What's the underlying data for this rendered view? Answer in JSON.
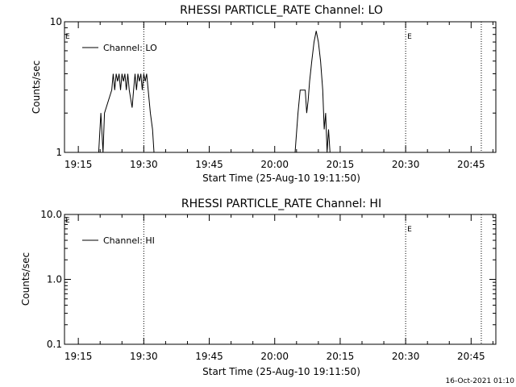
{
  "chart_data": [
    {
      "type": "line",
      "title": "RHESSI PARTICLE_RATE Channel: LO",
      "xlabel": "Start Time (25-Aug-10 19:11:50)",
      "ylabel": "Counts/sec",
      "yscale": "log",
      "ylim": [
        1,
        10
      ],
      "ytick_labels": [
        "1",
        "10"
      ],
      "xlim": [
        "19:11:50",
        "20:50:40"
      ],
      "xtick_labels": [
        "19:15",
        "19:30",
        "19:45",
        "20:00",
        "20:15",
        "20:30",
        "20:45"
      ],
      "legend": {
        "location": "top-left",
        "entries": [
          "Channel: LO"
        ]
      },
      "vertical_markers": [
        {
          "time": "19:30:00",
          "label": ""
        },
        {
          "time": "20:30:00",
          "label": "E"
        },
        {
          "time": "20:47:20",
          "label": ""
        }
      ],
      "edge_label_left": "E",
      "series": [
        {
          "name": "Channel: LO",
          "points": [
            [
              "19:19:40",
              1.0
            ],
            [
              "19:20:10",
              2.0
            ],
            [
              "19:20:40",
              1.0
            ],
            [
              "19:21:00",
              2.0
            ],
            [
              "19:22:40",
              3.0
            ],
            [
              "19:23:00",
              4.0
            ],
            [
              "19:23:20",
              3.0
            ],
            [
              "19:23:40",
              4.0
            ],
            [
              "19:24:00",
              3.5
            ],
            [
              "19:24:20",
              4.0
            ],
            [
              "19:24:40",
              3.0
            ],
            [
              "19:25:00",
              4.0
            ],
            [
              "19:25:20",
              3.5
            ],
            [
              "19:25:40",
              4.0
            ],
            [
              "19:26:00",
              3.0
            ],
            [
              "19:26:20",
              4.0
            ],
            [
              "19:26:40",
              3.0
            ],
            [
              "19:27:20",
              2.2
            ],
            [
              "19:27:40",
              3.0
            ],
            [
              "19:28:00",
              4.0
            ],
            [
              "19:28:20",
              3.0
            ],
            [
              "19:28:40",
              4.0
            ],
            [
              "19:29:00",
              3.5
            ],
            [
              "19:29:20",
              4.0
            ],
            [
              "19:29:40",
              3.0
            ],
            [
              "19:30:00",
              4.0
            ],
            [
              "19:30:20",
              3.5
            ],
            [
              "19:30:40",
              4.0
            ],
            [
              "19:31:00",
              3.0
            ],
            [
              "19:31:30",
              2.0
            ],
            [
              "19:32:00",
              1.5
            ],
            [
              "19:32:20",
              1.0
            ],
            [
              "20:04:40",
              1.0
            ],
            [
              "20:05:20",
              2.0
            ],
            [
              "20:05:50",
              3.0
            ],
            [
              "20:07:00",
              3.0
            ],
            [
              "20:07:20",
              2.0
            ],
            [
              "20:07:40",
              2.5
            ],
            [
              "20:08:00",
              3.5
            ],
            [
              "20:08:30",
              5.0
            ],
            [
              "20:09:00",
              7.0
            ],
            [
              "20:09:30",
              8.5
            ],
            [
              "20:10:00",
              7.0
            ],
            [
              "20:10:30",
              5.0
            ],
            [
              "20:11:00",
              3.0
            ],
            [
              "20:11:20",
              1.5
            ],
            [
              "20:11:40",
              2.0
            ],
            [
              "20:12:00",
              1.0
            ],
            [
              "20:12:20",
              1.5
            ],
            [
              "20:12:40",
              1.0
            ]
          ]
        }
      ]
    },
    {
      "type": "line",
      "title": "RHESSI PARTICLE_RATE Channel: HI",
      "xlabel": "Start Time (25-Aug-10 19:11:50)",
      "ylabel": "Counts/sec",
      "yscale": "log",
      "ylim": [
        0.1,
        10
      ],
      "ytick_labels": [
        "0.1",
        "1.0",
        "10.0"
      ],
      "xlim": [
        "19:11:50",
        "20:50:40"
      ],
      "xtick_labels": [
        "19:15",
        "19:30",
        "19:45",
        "20:00",
        "20:15",
        "20:30",
        "20:45"
      ],
      "legend": {
        "location": "top-left",
        "entries": [
          "Channel: HI"
        ]
      },
      "vertical_markers": [
        {
          "time": "19:30:00",
          "label": ""
        },
        {
          "time": "20:30:00",
          "label": "E"
        },
        {
          "time": "20:47:20",
          "label": ""
        }
      ],
      "edge_label_left": "E",
      "series": [
        {
          "name": "Channel: HI",
          "points": []
        }
      ]
    }
  ],
  "footer": {
    "timestamp": "16-Oct-2021 01:10"
  }
}
